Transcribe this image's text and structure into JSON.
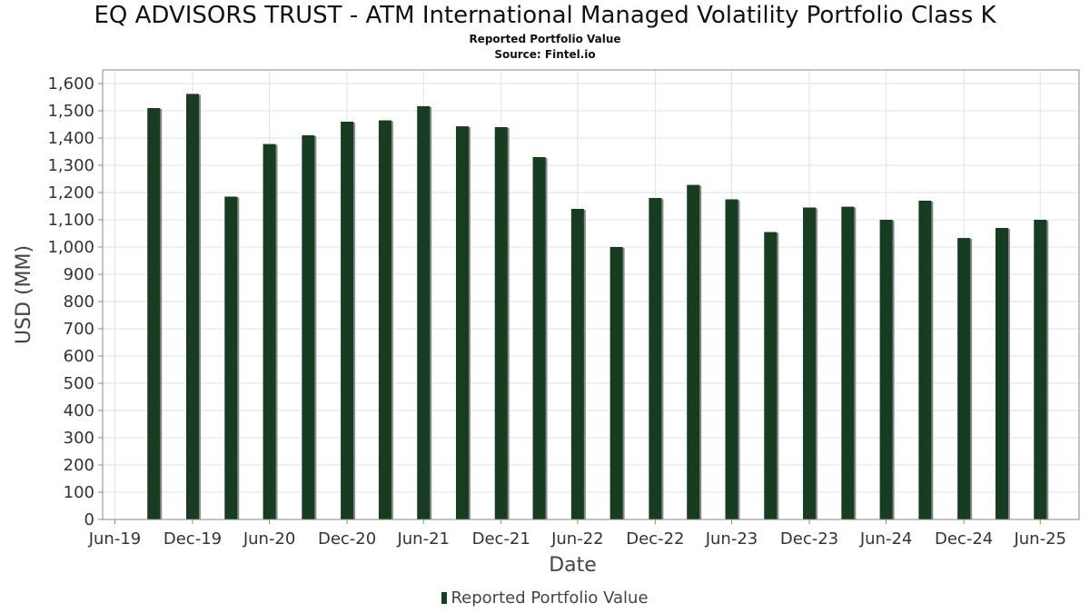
{
  "title": "EQ ADVISORS TRUST - ATM International Managed Volatility Portfolio Class K",
  "subtitle": "Reported Portfolio Value",
  "source": "Source: Fintel.io",
  "colors": {
    "bar": "#173d20",
    "bar_shadow": "#8a8a8a",
    "grid": "#e2e2e2"
  },
  "chart_data": {
    "type": "bar",
    "title": "EQ ADVISORS TRUST - ATM International Managed Volatility Portfolio Class K",
    "subtitle": "Reported Portfolio Value",
    "xlabel": "Date",
    "ylabel": "USD (MM)",
    "ylim": [
      0,
      1650
    ],
    "yticks": [
      0,
      100,
      200,
      300,
      400,
      500,
      600,
      700,
      800,
      900,
      1000,
      1100,
      1200,
      1300,
      1400,
      1500,
      1600
    ],
    "ytick_labels": [
      "0",
      "100",
      "200",
      "300",
      "400",
      "500",
      "600",
      "700",
      "800",
      "900",
      "1,000",
      "1,100",
      "1,200",
      "1,300",
      "1,400",
      "1,500",
      "1,600"
    ],
    "xlim": [
      "2019-06-01",
      "2025-09-30"
    ],
    "xticks": [
      {
        "date": "2019-06-30",
        "label": "Jun-19"
      },
      {
        "date": "2019-12-31",
        "label": "Dec-19"
      },
      {
        "date": "2020-06-30",
        "label": "Jun-20"
      },
      {
        "date": "2020-12-31",
        "label": "Dec-20"
      },
      {
        "date": "2021-06-30",
        "label": "Jun-21"
      },
      {
        "date": "2021-12-31",
        "label": "Dec-21"
      },
      {
        "date": "2022-06-30",
        "label": "Jun-22"
      },
      {
        "date": "2022-12-31",
        "label": "Dec-22"
      },
      {
        "date": "2023-06-30",
        "label": "Jun-23"
      },
      {
        "date": "2023-12-31",
        "label": "Dec-23"
      },
      {
        "date": "2024-06-30",
        "label": "Jun-24"
      },
      {
        "date": "2024-12-31",
        "label": "Dec-24"
      },
      {
        "date": "2025-06-30",
        "label": "Jun-25"
      }
    ],
    "grid": true,
    "legend_position": "bottom-center",
    "series": [
      {
        "name": "Reported Portfolio Value",
        "points": [
          {
            "x": "2019-09-30",
            "y": 1510
          },
          {
            "x": "2019-12-31",
            "y": 1562
          },
          {
            "x": "2020-03-31",
            "y": 1185
          },
          {
            "x": "2020-06-30",
            "y": 1378
          },
          {
            "x": "2020-09-30",
            "y": 1410
          },
          {
            "x": "2020-12-31",
            "y": 1460
          },
          {
            "x": "2021-03-31",
            "y": 1465
          },
          {
            "x": "2021-06-30",
            "y": 1517
          },
          {
            "x": "2021-09-30",
            "y": 1443
          },
          {
            "x": "2021-12-31",
            "y": 1440
          },
          {
            "x": "2022-03-31",
            "y": 1330
          },
          {
            "x": "2022-06-30",
            "y": 1140
          },
          {
            "x": "2022-09-30",
            "y": 1000
          },
          {
            "x": "2022-12-31",
            "y": 1180
          },
          {
            "x": "2023-03-31",
            "y": 1228
          },
          {
            "x": "2023-06-30",
            "y": 1175
          },
          {
            "x": "2023-09-30",
            "y": 1055
          },
          {
            "x": "2023-12-31",
            "y": 1145
          },
          {
            "x": "2024-03-31",
            "y": 1148
          },
          {
            "x": "2024-06-30",
            "y": 1100
          },
          {
            "x": "2024-09-30",
            "y": 1170
          },
          {
            "x": "2024-12-31",
            "y": 1033
          },
          {
            "x": "2025-03-31",
            "y": 1070
          },
          {
            "x": "2025-06-30",
            "y": 1100
          }
        ]
      }
    ]
  },
  "legend": {
    "label": "Reported Portfolio Value"
  }
}
